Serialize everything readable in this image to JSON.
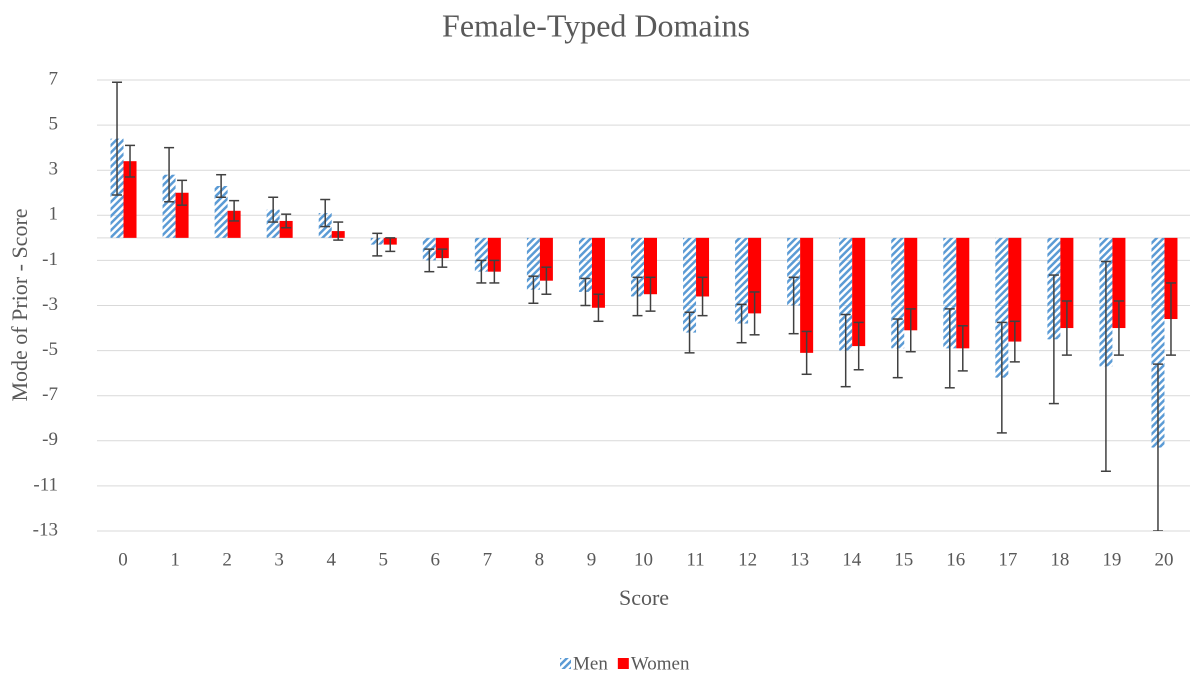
{
  "chart_data": {
    "type": "bar",
    "title": "Female-Typed Domains",
    "x_label": "Score",
    "y_label": "Mode of Prior - Score",
    "categories": [
      "0",
      "1",
      "2",
      "3",
      "4",
      "5",
      "6",
      "7",
      "8",
      "9",
      "10",
      "11",
      "12",
      "13",
      "14",
      "15",
      "16",
      "17",
      "18",
      "19",
      "20"
    ],
    "series": [
      {
        "name": "Men",
        "color": "#5b9bd5",
        "pattern": "hatch",
        "values": [
          4.4,
          2.8,
          2.3,
          1.25,
          1.1,
          -0.3,
          -1.0,
          -1.5,
          -2.3,
          -2.4,
          -2.6,
          -4.2,
          -3.8,
          -3.0,
          -5.0,
          -4.9,
          -4.9,
          -6.2,
          -4.5,
          -5.7,
          -9.3
        ],
        "errors": [
          2.5,
          1.2,
          0.5,
          0.55,
          0.6,
          0.5,
          0.5,
          0.5,
          0.6,
          0.6,
          0.85,
          0.9,
          0.85,
          1.25,
          1.6,
          1.3,
          1.75,
          2.45,
          2.85,
          4.65,
          3.7
        ]
      },
      {
        "name": "Women",
        "color": "#ff0000",
        "pattern": "solid",
        "values": [
          3.4,
          2.0,
          1.2,
          0.75,
          0.3,
          -0.3,
          -0.9,
          -1.5,
          -1.9,
          -3.1,
          -2.5,
          -2.6,
          -3.35,
          -5.1,
          -4.8,
          -4.1,
          -4.9,
          -4.6,
          -4.0,
          -4.0,
          -3.6
        ],
        "errors": [
          0.7,
          0.55,
          0.45,
          0.3,
          0.4,
          0.3,
          0.4,
          0.5,
          0.6,
          0.6,
          0.75,
          0.85,
          0.95,
          0.95,
          1.05,
          0.95,
          1.0,
          0.9,
          1.2,
          1.2,
          1.6
        ]
      }
    ],
    "ylim": [
      -13,
      7
    ],
    "yticks": [
      -13,
      -11,
      -9,
      -7,
      -5,
      -3,
      -1,
      1,
      3,
      5,
      7
    ],
    "grid": true,
    "legend": "bottom"
  }
}
